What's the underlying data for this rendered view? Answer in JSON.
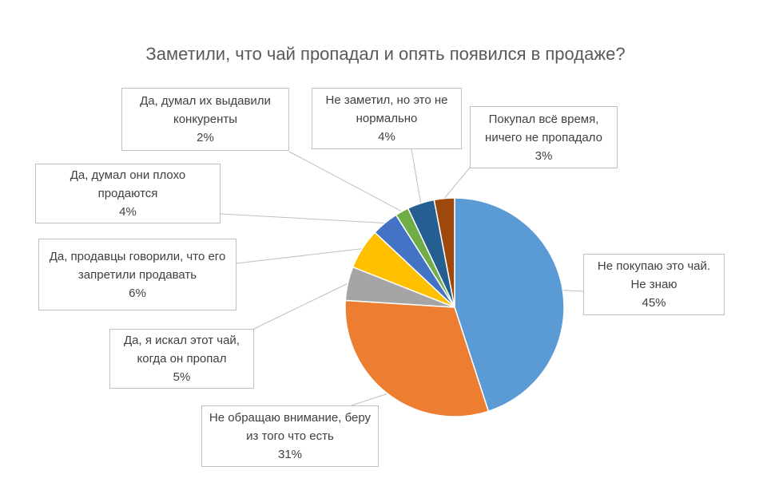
{
  "chart_data": {
    "type": "pie",
    "title": "Заметили, что чай пропадал и опять появился в продаже?",
    "categories": [
      "Не покупаю это чай. Не знаю",
      "Не обращаю внимание, беру из того что есть",
      "Да, я искал этот чай, когда он пропал",
      "Да, продавцы говорили, что его запретили продавать",
      "Да, думал они плохо продаются",
      "Да, думал их выдавили конкуренты",
      "Не заметил, но это не нормально",
      "Покупал всё время, ничего не пропадало"
    ],
    "values": [
      45,
      31,
      5,
      6,
      4,
      2,
      4,
      3
    ],
    "value_labels": [
      "45%",
      "31%",
      "5%",
      "6%",
      "4%",
      "2%",
      "4%",
      "3%"
    ],
    "colors": [
      "#5b9bd5",
      "#ed7d31",
      "#a5a5a5",
      "#ffc000",
      "#4472c4",
      "#70ad47",
      "#255e91",
      "#9e480e"
    ]
  }
}
